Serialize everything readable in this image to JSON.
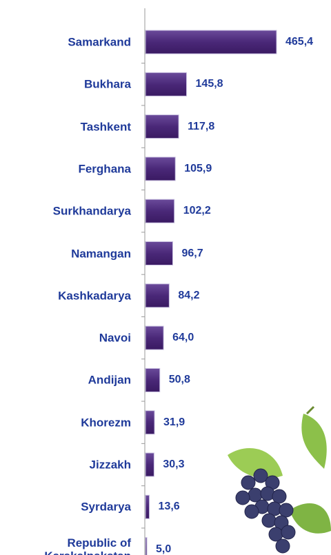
{
  "chart_data": {
    "type": "bar",
    "orientation": "horizontal",
    "categories": [
      "Samarkand",
      "Bukhara",
      "Tashkent",
      "Ferghana",
      "Surkhandarya",
      "Namangan",
      "Kashkadarya",
      "Navoi",
      "Andijan",
      "Khorezm",
      "Jizzakh",
      "Syrdarya",
      "Republic of Karakalpakstan"
    ],
    "values": [
      465.4,
      145.8,
      117.8,
      105.9,
      102.2,
      96.7,
      84.2,
      64.0,
      50.8,
      31.9,
      30.3,
      13.6,
      5.0
    ],
    "value_labels": [
      "465,4",
      "145,8",
      "117,8",
      "105,9",
      "102,2",
      "96,7",
      "84,2",
      "64,0",
      "50,8",
      "31,9",
      "30,3",
      "13,6",
      "5,0"
    ],
    "color": "#4a2878"
  }
}
